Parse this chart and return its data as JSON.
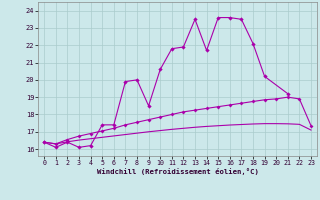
{
  "xlabel": "Windchill (Refroidissement éolien,°C)",
  "bg_color": "#cce8ea",
  "line_color": "#aa00aa",
  "grid_color": "#aacccc",
  "x_ticks": [
    0,
    1,
    2,
    3,
    4,
    5,
    6,
    7,
    8,
    9,
    10,
    11,
    12,
    13,
    14,
    15,
    16,
    17,
    18,
    19,
    20,
    21,
    22,
    23
  ],
  "y_ticks": [
    16,
    17,
    18,
    19,
    20,
    21,
    22,
    23,
    24
  ],
  "xlim": [
    -0.5,
    23.5
  ],
  "ylim": [
    15.6,
    24.5
  ],
  "line1_x": [
    0,
    1,
    2,
    3,
    4,
    5,
    6,
    7,
    8,
    9,
    10,
    11,
    12,
    13,
    14,
    15,
    16,
    17,
    18,
    19,
    21
  ],
  "line1_y": [
    16.4,
    16.1,
    16.4,
    16.1,
    16.2,
    17.4,
    17.4,
    19.9,
    20.0,
    18.5,
    20.6,
    21.8,
    21.9,
    23.5,
    21.7,
    23.6,
    23.6,
    23.5,
    22.1,
    20.2,
    19.2
  ],
  "line2_x": [
    0,
    1,
    2,
    3,
    4,
    5,
    6,
    7,
    8,
    9,
    10,
    11,
    12,
    13,
    14,
    15,
    16,
    17,
    18,
    19,
    20,
    21,
    22,
    23
  ],
  "line2_y": [
    16.4,
    16.3,
    16.55,
    16.75,
    16.9,
    17.05,
    17.2,
    17.4,
    17.55,
    17.7,
    17.85,
    18.0,
    18.15,
    18.25,
    18.35,
    18.45,
    18.55,
    18.65,
    18.75,
    18.85,
    18.9,
    19.0,
    18.9,
    17.35
  ],
  "line3_x": [
    0,
    1,
    2,
    3,
    4,
    5,
    6,
    7,
    8,
    9,
    10,
    11,
    12,
    13,
    14,
    15,
    16,
    17,
    18,
    19,
    20,
    21,
    22,
    23
  ],
  "line3_y": [
    16.4,
    16.3,
    16.42,
    16.52,
    16.6,
    16.68,
    16.76,
    16.84,
    16.92,
    17.0,
    17.07,
    17.14,
    17.2,
    17.26,
    17.31,
    17.35,
    17.39,
    17.42,
    17.45,
    17.47,
    17.47,
    17.46,
    17.43,
    17.1
  ]
}
